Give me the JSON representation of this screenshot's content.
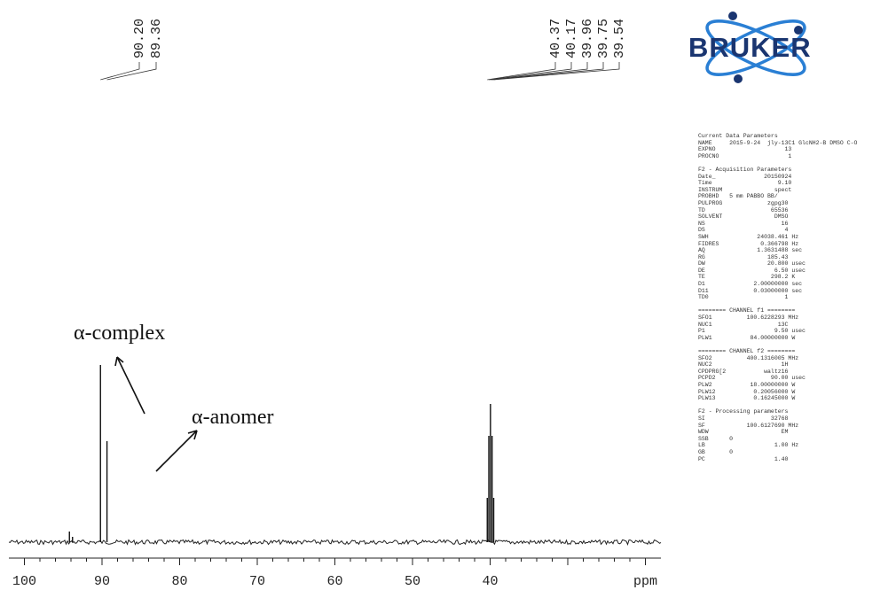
{
  "chart_data": {
    "type": "line",
    "title": "",
    "xlabel": "ppm",
    "x_ticks": [
      100,
      90,
      80,
      70,
      60,
      50,
      40
    ],
    "xlim": [
      102,
      18
    ],
    "peaks": [
      {
        "ppm": 94.2,
        "intensity": 0.06
      },
      {
        "ppm": 93.8,
        "intensity": 0.03
      },
      {
        "ppm": 90.2,
        "intensity": 1.0
      },
      {
        "ppm": 89.36,
        "intensity": 0.57
      },
      {
        "ppm": 40.37,
        "intensity": 0.25
      },
      {
        "ppm": 40.17,
        "intensity": 0.6
      },
      {
        "ppm": 39.96,
        "intensity": 0.78
      },
      {
        "ppm": 39.75,
        "intensity": 0.6
      },
      {
        "ppm": 39.54,
        "intensity": 0.25
      }
    ],
    "peak_labels_left": [
      "90.20",
      "89.36"
    ],
    "peak_labels_right": [
      "40.37",
      "40.17",
      "39.96",
      "39.75",
      "39.54"
    ],
    "annotations": [
      {
        "text": "α-complex",
        "arrow_to_ppm": 90.2
      },
      {
        "text": "α-anomer",
        "arrow_to_ppm": 89.36
      }
    ]
  },
  "logo": {
    "text": "BRUKER",
    "color": "#1a3570"
  },
  "params": [
    "Current Data Parameters",
    "NAME     2015-9-24  jly-13C1 GlcNH2-B DMSO C-O",
    "EXPNO                    13",
    "PROCNO                    1",
    "",
    "F2 - Acquisition Parameters",
    "Date_              20150924",
    "Time                   9.10",
    "INSTRUM               spect",
    "PROBHD   5 mm PABBO BB/",
    "PULPROG             zgpg30",
    "TD                   65536",
    "SOLVENT               DMSO",
    "NS                      16",
    "DS                       4",
    "SWH              24038.461 Hz",
    "FIDRES            0.366798 Hz",
    "AQ               1.3631488 sec",
    "RG                  185.43",
    "DW                  20.800 usec",
    "DE                    6.50 usec",
    "TE                   298.2 K",
    "D1              2.00000000 sec",
    "D11             0.03000000 sec",
    "TD0                      1",
    "",
    "======== CHANNEL f1 ========",
    "SFO1          100.6228293 MHz",
    "NUC1                   13C",
    "P1                    9.50 usec",
    "PLW1           84.00000000 W",
    "",
    "======== CHANNEL f2 ========",
    "SFO2          400.1316005 MHz",
    "NUC2                    1H",
    "CPDPRG[2           waltz16",
    "PCPD2                90.00 usec",
    "PLW2           18.00000000 W",
    "PLW12           0.20056000 W",
    "PLW13           0.16245000 W",
    "",
    "F2 - Processing parameters",
    "SI                   32768",
    "SF            100.6127690 MHz",
    "WDW                     EM",
    "SSB      0",
    "LB                    1.00 Hz",
    "GB       0",
    "PC                    1.40"
  ]
}
